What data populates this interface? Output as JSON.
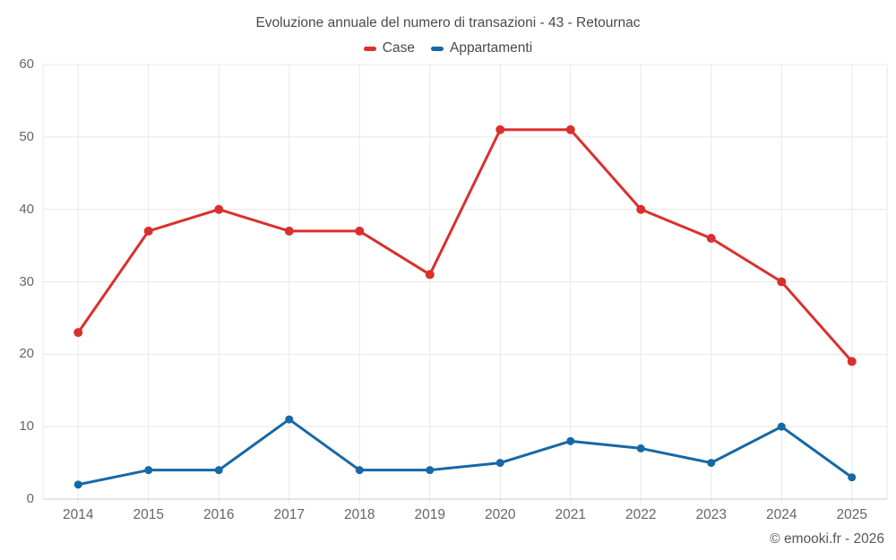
{
  "title": "Evoluzione annuale del numero di transazioni - 43 - Retournac",
  "footer": "© emooki.fr - 2026",
  "colors": {
    "grid": "#e8e8e8",
    "axis": "#cdcdcd",
    "title_text": "#4a4a4a",
    "tick_text": "#666666",
    "case_red": "#d9302e",
    "appartamenti_blue": "#1668a6"
  },
  "chart_data": {
    "type": "line",
    "title": "Evoluzione annuale del numero di transazioni - 43 - Retournac",
    "xlabel": "",
    "ylabel": "",
    "x": [
      "2014",
      "2015",
      "2016",
      "2017",
      "2018",
      "2019",
      "2020",
      "2021",
      "2022",
      "2023",
      "2024",
      "2025"
    ],
    "series": [
      {
        "name": "Case",
        "color": "#d9302e",
        "values": [
          23,
          37,
          40,
          37,
          37,
          31,
          51,
          51,
          40,
          36,
          30,
          19
        ]
      },
      {
        "name": "Appartamenti",
        "color": "#1668a6",
        "values": [
          2,
          4,
          4,
          11,
          4,
          4,
          5,
          8,
          7,
          5,
          10,
          3
        ]
      }
    ],
    "ylim": [
      0,
      60
    ],
    "yticks": [
      0,
      10,
      20,
      30,
      40,
      50,
      60
    ],
    "grid": true,
    "legend_position": "top"
  }
}
